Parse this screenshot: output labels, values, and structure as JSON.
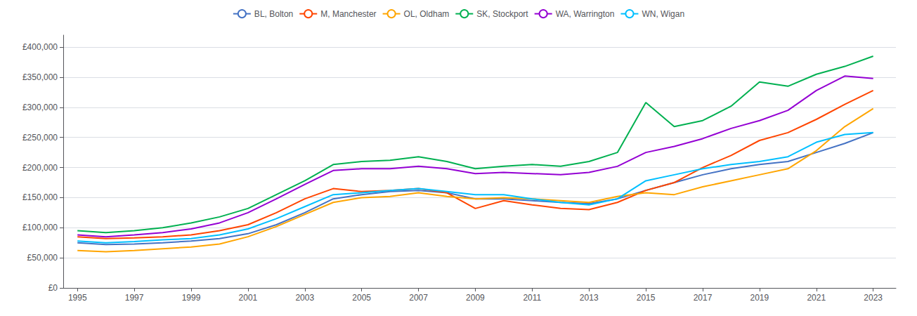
{
  "chart_data": {
    "type": "line",
    "x": [
      1995,
      1996,
      1997,
      1998,
      1999,
      2000,
      2001,
      2002,
      2003,
      2004,
      2005,
      2006,
      2007,
      2008,
      2009,
      2010,
      2011,
      2012,
      2013,
      2014,
      2015,
      2016,
      2017,
      2018,
      2019,
      2020,
      2021,
      2022,
      2023
    ],
    "series": [
      {
        "name": "BL, Bolton",
        "color": "#4472C4",
        "values": [
          75000,
          72000,
          73000,
          75000,
          78000,
          82000,
          90000,
          105000,
          125000,
          148000,
          155000,
          160000,
          162000,
          158000,
          148000,
          148000,
          145000,
          142000,
          140000,
          148000,
          162000,
          175000,
          188000,
          198000,
          205000,
          210000,
          225000,
          240000,
          258000
        ]
      },
      {
        "name": "M, Manchester",
        "color": "#FF4500",
        "values": [
          85000,
          82000,
          83000,
          85000,
          88000,
          95000,
          105000,
          125000,
          148000,
          165000,
          160000,
          162000,
          165000,
          158000,
          132000,
          145000,
          138000,
          132000,
          130000,
          142000,
          162000,
          175000,
          200000,
          220000,
          245000,
          258000,
          280000,
          305000,
          328000
        ]
      },
      {
        "name": "OL, Oldham",
        "color": "#FFA500",
        "values": [
          62000,
          60000,
          62000,
          65000,
          68000,
          73000,
          85000,
          102000,
          122000,
          142000,
          150000,
          152000,
          158000,
          152000,
          148000,
          150000,
          148000,
          145000,
          142000,
          152000,
          158000,
          155000,
          168000,
          178000,
          188000,
          198000,
          228000,
          268000,
          298000
        ]
      },
      {
        "name": "SK, Stockport",
        "color": "#00B050",
        "values": [
          95000,
          92000,
          95000,
          100000,
          108000,
          118000,
          132000,
          155000,
          178000,
          205000,
          210000,
          212000,
          218000,
          210000,
          198000,
          202000,
          205000,
          202000,
          210000,
          225000,
          308000,
          268000,
          278000,
          302000,
          342000,
          335000,
          355000,
          368000,
          385000
        ]
      },
      {
        "name": "WA, Warrington",
        "color": "#9400D3",
        "values": [
          88000,
          85000,
          88000,
          92000,
          98000,
          108000,
          125000,
          148000,
          172000,
          195000,
          198000,
          198000,
          202000,
          198000,
          190000,
          192000,
          190000,
          188000,
          192000,
          202000,
          225000,
          235000,
          248000,
          265000,
          278000,
          295000,
          328000,
          352000,
          348000
        ]
      },
      {
        "name": "WN, Wigan",
        "color": "#00BFFF",
        "values": [
          78000,
          75000,
          77000,
          80000,
          82000,
          88000,
          98000,
          115000,
          135000,
          155000,
          158000,
          162000,
          165000,
          160000,
          155000,
          155000,
          148000,
          142000,
          138000,
          148000,
          178000,
          188000,
          198000,
          205000,
          210000,
          218000,
          242000,
          255000,
          258000
        ]
      }
    ],
    "xlim": [
      1994.5,
      2023.8
    ],
    "xticks": [
      1995,
      1997,
      1999,
      2001,
      2003,
      2005,
      2007,
      2009,
      2011,
      2013,
      2015,
      2017,
      2019,
      2021,
      2023
    ],
    "ylim": [
      0,
      420000
    ],
    "yticks": [
      {
        "value": 0,
        "label": "£0"
      },
      {
        "value": 50000,
        "label": "£50,000"
      },
      {
        "value": 100000,
        "label": "£100,000"
      },
      {
        "value": 150000,
        "label": "£150,000"
      },
      {
        "value": 200000,
        "label": "£200,000"
      },
      {
        "value": 250000,
        "label": "£250,000"
      },
      {
        "value": 300000,
        "label": "£300,000"
      },
      {
        "value": 350000,
        "label": "£350,000"
      },
      {
        "value": 400000,
        "label": "£400,000"
      }
    ],
    "grid": "y",
    "legend": "top"
  }
}
